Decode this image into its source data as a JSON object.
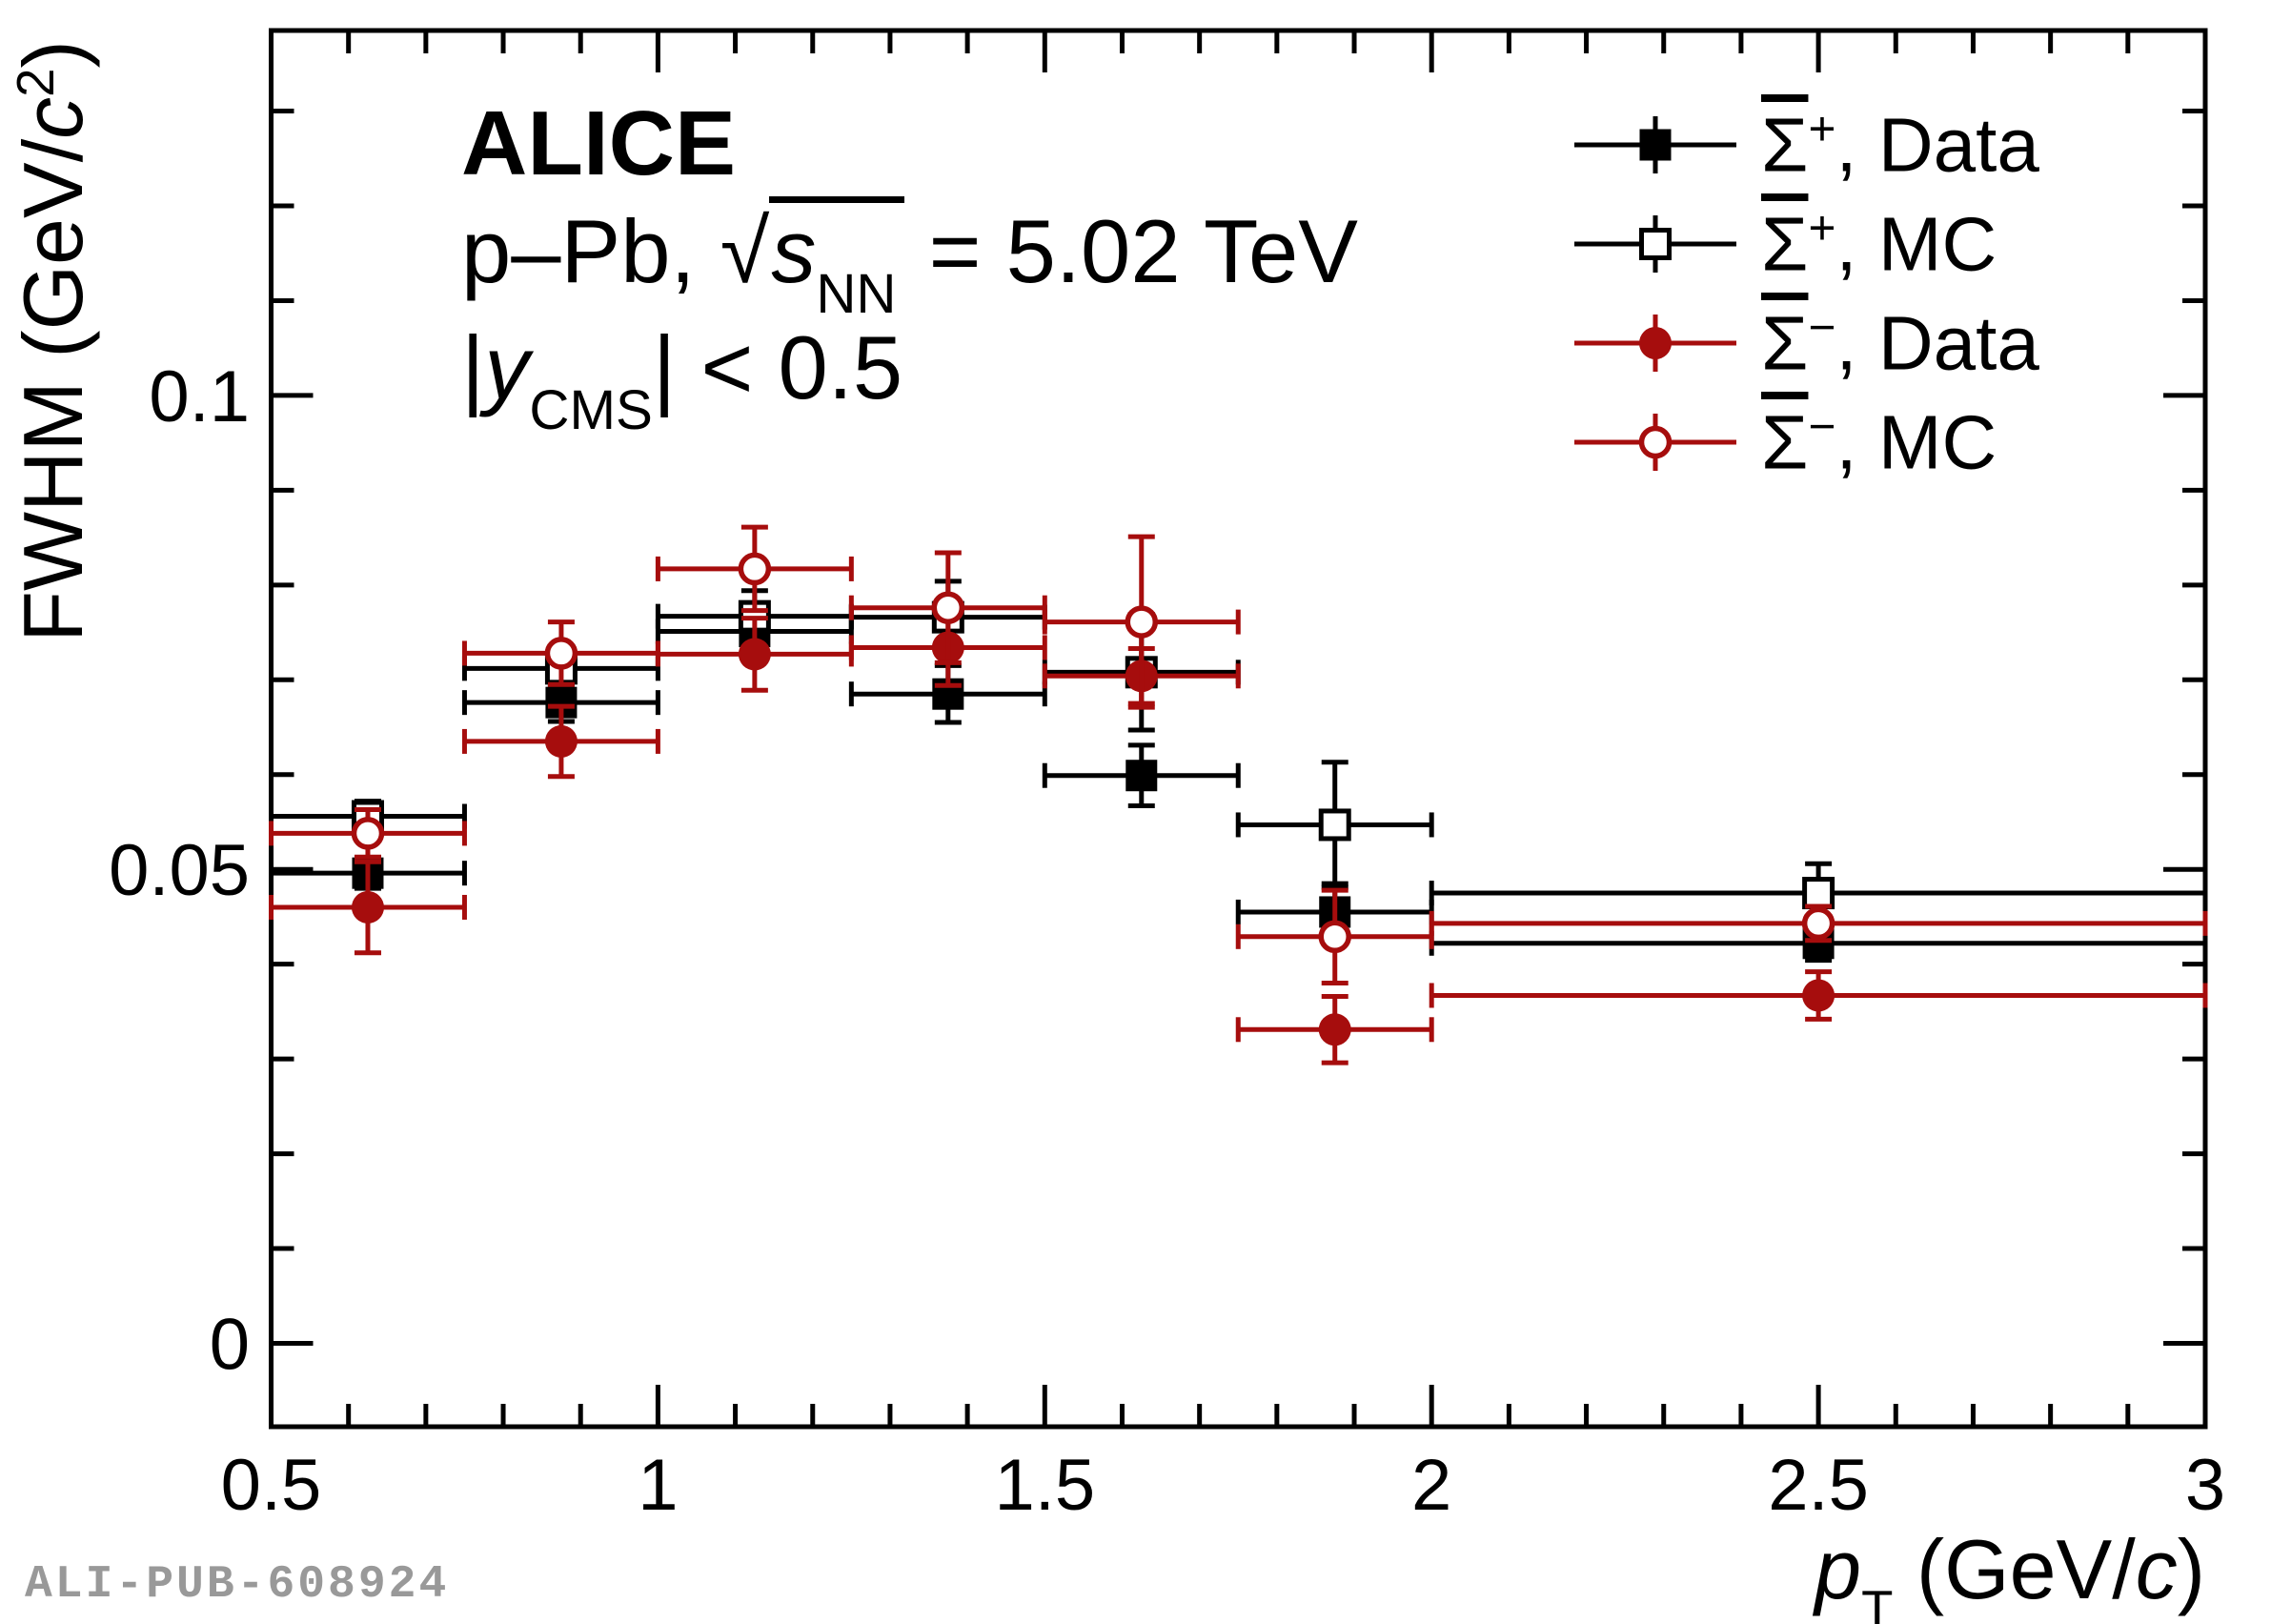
{
  "figure": {
    "watermark": "ALI-PUB-608924"
  },
  "colors": {
    "black": "#000000",
    "dark_red": "#A60D0D",
    "watermark_gray": "#999999",
    "background": "#FFFFFF"
  },
  "annotations": {
    "alice": [
      {
        "t": "ALICE",
        "bold": true
      }
    ],
    "system": [
      {
        "t": "p–Pb, "
      },
      {
        "t": "√"
      },
      {
        "t": "s",
        "italic": true,
        "bar": true
      },
      {
        "t": "NN",
        "sub": true,
        "bar": true
      },
      {
        "t": " = 5.02 TeV"
      }
    ],
    "ycut": [
      {
        "t": "|"
      },
      {
        "t": "y",
        "italic": true
      },
      {
        "t": "CMS",
        "sub": true
      },
      {
        "t": "| < 0.5"
      }
    ]
  },
  "axes": {
    "x_title": [
      {
        "t": "p",
        "italic": true
      },
      {
        "t": "T",
        "sub": true
      },
      {
        "t": " (GeV/"
      },
      {
        "t": "c",
        "italic": true
      },
      {
        "t": ")"
      }
    ],
    "y_title": [
      {
        "t": "FWHM (GeV/"
      },
      {
        "t": "c",
        "italic": true
      },
      {
        "t": "2",
        "sup": true
      },
      {
        "t": ")"
      }
    ]
  },
  "legend": {
    "entries": [
      {
        "series": 0,
        "label": [
          {
            "t": "Σ",
            "over": true
          },
          {
            "t": "+",
            "sup": true
          },
          {
            "t": ", Data"
          }
        ]
      },
      {
        "series": 1,
        "label": [
          {
            "t": "Σ",
            "over": true
          },
          {
            "t": "+",
            "sup": true
          },
          {
            "t": ", MC"
          }
        ]
      },
      {
        "series": 2,
        "label": [
          {
            "t": "Σ",
            "over": true
          },
          {
            "t": "−",
            "sup": true
          },
          {
            "t": ", Data"
          }
        ]
      },
      {
        "series": 3,
        "label": [
          {
            "t": "Σ",
            "over": true
          },
          {
            "t": "−",
            "sup": true
          },
          {
            "t": ", MC"
          }
        ]
      }
    ]
  },
  "chart_data": {
    "type": "scatter",
    "title": "",
    "xlabel": "pT (GeV/c)",
    "ylabel": "FWHM (GeV/c2)",
    "xlim": [
      0.5,
      3.0
    ],
    "ylim": [
      -0.0088,
      0.1385
    ],
    "x_major_ticks": [
      0.5,
      1.0,
      1.5,
      2.0,
      2.5,
      3.0
    ],
    "x_tick_labels": [
      "0.5",
      "1",
      "1.5",
      "2",
      "2.5",
      "3"
    ],
    "x_minor_step": 0.1,
    "y_major_ticks": [
      0,
      0.05,
      0.1
    ],
    "y_tick_labels": [
      "0",
      "0.05",
      "0.1"
    ],
    "y_minor_step": 0.01,
    "grid": false,
    "legend_position": "top-right",
    "bins": [
      {
        "x": 0.625,
        "xlow": 0.5,
        "xhigh": 0.75
      },
      {
        "x": 0.875,
        "xlow": 0.75,
        "xhigh": 1.0
      },
      {
        "x": 1.125,
        "xlow": 1.0,
        "xhigh": 1.25
      },
      {
        "x": 1.375,
        "xlow": 1.25,
        "xhigh": 1.5
      },
      {
        "x": 1.625,
        "xlow": 1.5,
        "xhigh": 1.75
      },
      {
        "x": 1.875,
        "xlow": 1.75,
        "xhigh": 2.0
      },
      {
        "x": 2.5,
        "xlow": 2.0,
        "xhigh": 3.0
      }
    ],
    "series": [
      {
        "name": "Sigmabar-plus, Data",
        "marker": "square-filled",
        "color": "#000000",
        "y": [
          0.0496,
          0.0676,
          0.0751,
          0.0685,
          0.0599,
          0.0455,
          0.0422
        ],
        "ey": [
          0.0016,
          0.002,
          0.0025,
          0.003,
          0.0032,
          0.003,
          0.0018
        ]
      },
      {
        "name": "Sigmabar-plus, MC",
        "marker": "square-open",
        "color": "#000000",
        "y": [
          0.0556,
          0.0712,
          0.0767,
          0.0766,
          0.0708,
          0.0547,
          0.0475
        ],
        "ey": [
          0.0016,
          0.0018,
          0.0027,
          0.0038,
          0.0061,
          0.0066,
          0.0031
        ]
      },
      {
        "name": "Sigmabar-minus, Data",
        "marker": "circle-filled",
        "color": "#A60D0D",
        "y": [
          0.046,
          0.0635,
          0.0727,
          0.0734,
          0.0704,
          0.0331,
          0.0367
        ],
        "ey": [
          0.0048,
          0.0037,
          0.0038,
          0.004,
          0.0029,
          0.0035,
          0.0025
        ]
      },
      {
        "name": "Sigmabar-minus, MC",
        "marker": "circle-open",
        "color": "#A60D0D",
        "y": [
          0.0538,
          0.0728,
          0.0817,
          0.0776,
          0.0761,
          0.0429,
          0.0443
        ],
        "ey": [
          0.0025,
          0.0033,
          0.0044,
          0.0058,
          0.009,
          0.0049,
          0.0018
        ]
      }
    ]
  }
}
